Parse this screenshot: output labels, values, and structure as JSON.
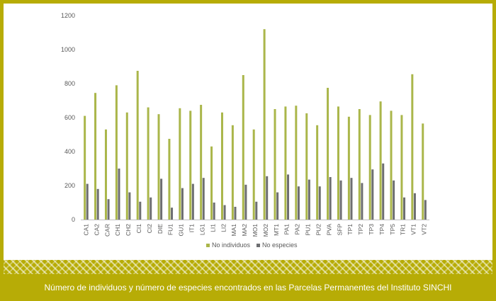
{
  "caption": "Número de individuos y número de especies encontrados en las Parcelas Permanentes del Instituto SINCHI",
  "chart_data": {
    "type": "bar",
    "categories": [
      "CA1",
      "CA2",
      "CAR",
      "CH1",
      "CH2",
      "CI1",
      "CI2",
      "DIE",
      "FU1",
      "GU1",
      "IT1",
      "LG1",
      "LI1",
      "LI2",
      "MA1",
      "MA2",
      "MO1",
      "MO2",
      "MT1",
      "PA1",
      "PA2",
      "PU1",
      "PU2",
      "PVA",
      "SFP",
      "TP1",
      "TP2",
      "TP3",
      "TP4",
      "TP5",
      "TR1",
      "VT1",
      "VT2"
    ],
    "series": [
      {
        "name": "No individuos",
        "color": "#aab64a",
        "values": [
          610,
          745,
          530,
          790,
          630,
          875,
          660,
          620,
          475,
          655,
          640,
          675,
          430,
          630,
          555,
          850,
          530,
          1120,
          650,
          665,
          670,
          625,
          555,
          775,
          665,
          605,
          650,
          615,
          695,
          640,
          615,
          855,
          565
        ]
      },
      {
        "name": "No especies",
        "color": "#6d6e71",
        "values": [
          210,
          180,
          120,
          300,
          160,
          105,
          130,
          240,
          70,
          185,
          210,
          245,
          100,
          85,
          75,
          205,
          105,
          255,
          160,
          265,
          195,
          235,
          195,
          250,
          230,
          245,
          215,
          295,
          330,
          230,
          130,
          155,
          115
        ]
      }
    ],
    "yticks": [
      "0",
      "200",
      "400",
      "600",
      "800",
      "1000",
      "1200"
    ],
    "ylim": [
      0,
      1200
    ],
    "grid": false,
    "legend": "bottom"
  }
}
